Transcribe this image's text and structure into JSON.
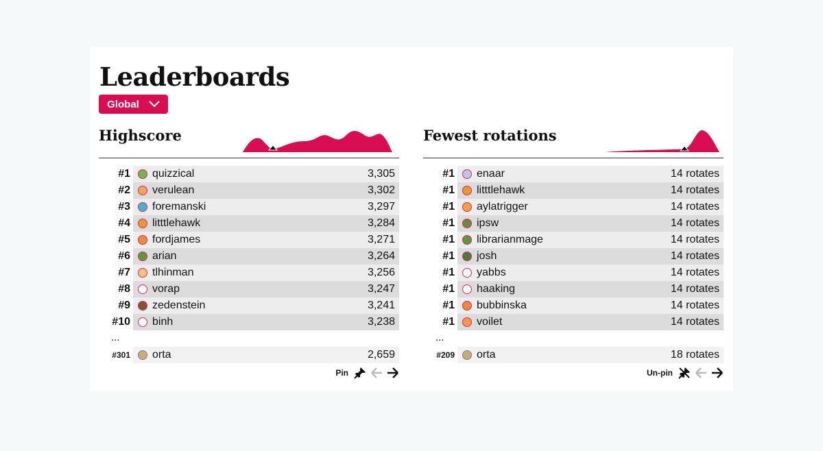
{
  "header": {
    "title": "Leaderboards",
    "scope_label": "Global"
  },
  "boards": [
    {
      "title": "Highscore",
      "rows": [
        {
          "rank": "#1",
          "name": "quizzical",
          "value": "3,305",
          "avatar_color": "#6fb84a"
        },
        {
          "rank": "#2",
          "name": "verulean",
          "value": "3,302",
          "avatar_color": "#f2a65a"
        },
        {
          "rank": "#3",
          "name": "foremanski",
          "value": "3,297",
          "avatar_color": "#3db6c9"
        },
        {
          "rank": "#4",
          "name": "litttlehawk",
          "value": "3,284",
          "avatar_color": "#e59c2f"
        },
        {
          "rank": "#5",
          "name": "fordjames",
          "value": "3,271",
          "avatar_color": "#f08c3c"
        },
        {
          "rank": "#6",
          "name": "arian",
          "value": "3,264",
          "avatar_color": "#5b9a3c"
        },
        {
          "rank": "#7",
          "name": "tlhinman",
          "value": "3,256",
          "avatar_color": "#f3c77a"
        },
        {
          "rank": "#8",
          "name": "vorap",
          "value": "3,247",
          "avatar_color": "#ffffff"
        },
        {
          "rank": "#9",
          "name": "zedenstein",
          "value": "3,241",
          "avatar_color": "#7a5a2a"
        },
        {
          "rank": "#10",
          "name": "binh",
          "value": "3,238",
          "avatar_color": "#ffffff"
        }
      ],
      "ellipsis": "...",
      "self": {
        "rank": "#301",
        "name": "orta",
        "value": "2,659",
        "avatar_color": "#c9b06a"
      },
      "pin_label": "Pin"
    },
    {
      "title": "Fewest rotations",
      "rows": [
        {
          "rank": "#1",
          "name": "enaar",
          "value": "14 rotates",
          "avatar_color": "#b9c7e8"
        },
        {
          "rank": "#1",
          "name": "litttlehawk",
          "value": "14 rotates",
          "avatar_color": "#e59c2f"
        },
        {
          "rank": "#1",
          "name": "aylatrigger",
          "value": "14 rotates",
          "avatar_color": "#f3a23a"
        },
        {
          "rank": "#1",
          "name": "ipsw",
          "value": "14 rotates",
          "avatar_color": "#6a8a3a"
        },
        {
          "rank": "#1",
          "name": "librarianmage",
          "value": "14 rotates",
          "avatar_color": "#5b9a3c"
        },
        {
          "rank": "#1",
          "name": "josh",
          "value": "14 rotates",
          "avatar_color": "#4d7a3a"
        },
        {
          "rank": "#1",
          "name": "yabbs",
          "value": "14 rotates",
          "avatar_color": "#ffffff"
        },
        {
          "rank": "#1",
          "name": "haaking",
          "value": "14 rotates",
          "avatar_color": "#ffffff"
        },
        {
          "rank": "#1",
          "name": "bubbinska",
          "value": "14 rotates",
          "avatar_color": "#e88a3a"
        },
        {
          "rank": "#1",
          "name": "voilet",
          "value": "14 rotates",
          "avatar_color": "#f29a4a"
        }
      ],
      "ellipsis": "...",
      "self": {
        "rank": "#209",
        "name": "orta",
        "value": "18 rotates",
        "avatar_color": "#c9b06a"
      },
      "pin_label": "Un-pin"
    }
  ],
  "icons": {
    "scope_dropdown": "chevron-down-icon",
    "pin": "pin-icon",
    "unpin": "unpin-icon",
    "prev": "arrow-left-icon",
    "next": "arrow-right-icon"
  },
  "colors": {
    "accent": "#d90d52",
    "row_light": "#ededed",
    "row_dark": "#dcdcdc"
  }
}
